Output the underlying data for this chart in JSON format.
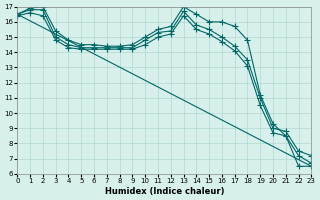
{
  "xlabel": "Humidex (Indice chaleur)",
  "xlim": [
    0,
    23
  ],
  "ylim": [
    6,
    17
  ],
  "xticks": [
    0,
    1,
    2,
    3,
    4,
    5,
    6,
    7,
    8,
    9,
    10,
    11,
    12,
    13,
    14,
    15,
    16,
    17,
    18,
    19,
    20,
    21,
    22,
    23
  ],
  "yticks": [
    6,
    7,
    8,
    9,
    10,
    11,
    12,
    13,
    14,
    15,
    16,
    17
  ],
  "bg_color": "#d8f0ec",
  "grid_color": "#b0d8d0",
  "line_color": "#006666",
  "line1": {
    "x": [
      0,
      1,
      2,
      3,
      4,
      5,
      6,
      7,
      8,
      9,
      10,
      11,
      12,
      13,
      14,
      15,
      16,
      17,
      18,
      19,
      20,
      21,
      22,
      23
    ],
    "y": [
      16.5,
      16.8,
      16.8,
      15.0,
      14.5,
      14.3,
      14.3,
      14.3,
      14.3,
      14.3,
      14.8,
      15.3,
      15.4,
      16.7,
      15.8,
      15.5,
      15.0,
      14.4,
      13.5,
      11.0,
      9.0,
      8.8,
      7.5,
      7.2
    ]
  },
  "line2": {
    "x": [
      0,
      1,
      2,
      3,
      4,
      5,
      6,
      7,
      8,
      9,
      10,
      11,
      12,
      13,
      14,
      15,
      16,
      17,
      18,
      19,
      20,
      21,
      22,
      23
    ],
    "y": [
      16.4,
      16.6,
      16.4,
      14.8,
      14.3,
      14.2,
      14.2,
      14.2,
      14.2,
      14.2,
      14.5,
      15.0,
      15.2,
      16.4,
      15.5,
      15.2,
      14.7,
      14.1,
      13.1,
      10.5,
      8.7,
      8.5,
      7.2,
      6.7
    ]
  },
  "line3": {
    "x": [
      0,
      1,
      2,
      3,
      4,
      5,
      6,
      7,
      8,
      9,
      10,
      11,
      12,
      13,
      14,
      15,
      16,
      17,
      18,
      19,
      20,
      21,
      22,
      23
    ],
    "y": [
      16.5,
      16.9,
      17.0,
      15.4,
      14.8,
      14.5,
      14.5,
      14.4,
      14.4,
      14.5,
      15.0,
      15.5,
      15.7,
      17.0,
      16.5,
      16.0,
      16.0,
      15.7,
      14.8,
      11.2,
      9.3,
      8.5,
      6.5,
      6.5
    ]
  },
  "line4": {
    "x": [
      0,
      23
    ],
    "y": [
      16.5,
      6.5
    ]
  }
}
